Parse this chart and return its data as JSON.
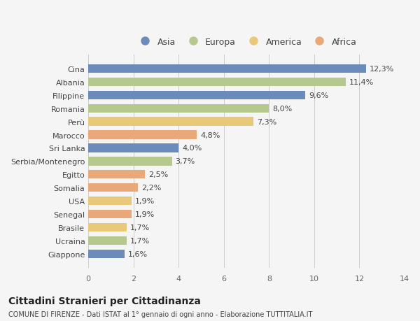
{
  "categories": [
    "Giappone",
    "Ucraina",
    "Brasile",
    "Senegal",
    "USA",
    "Somalia",
    "Egitto",
    "Serbia/Montenegro",
    "Sri Lanka",
    "Marocco",
    "Perù",
    "Romania",
    "Filippine",
    "Albania",
    "Cina"
  ],
  "values": [
    1.6,
    1.7,
    1.7,
    1.9,
    1.9,
    2.2,
    2.5,
    3.7,
    4.0,
    4.8,
    7.3,
    8.0,
    9.6,
    11.4,
    12.3
  ],
  "labels": [
    "1,6%",
    "1,7%",
    "1,7%",
    "1,9%",
    "1,9%",
    "2,2%",
    "2,5%",
    "3,7%",
    "4,0%",
    "4,8%",
    "7,3%",
    "8,0%",
    "9,6%",
    "11,4%",
    "12,3%"
  ],
  "colors": [
    "#6b8cba",
    "#b5c98e",
    "#e8c97a",
    "#e8a87a",
    "#e8c97a",
    "#e8a87a",
    "#e8a87a",
    "#b5c98e",
    "#6b8cba",
    "#e8a87a",
    "#e8c97a",
    "#b5c98e",
    "#6b8cba",
    "#b5c98e",
    "#6b8cba"
  ],
  "legend_labels": [
    "Asia",
    "Europa",
    "America",
    "Africa"
  ],
  "legend_colors": [
    "#6b8cba",
    "#b5c98e",
    "#e8c97a",
    "#e8a87a"
  ],
  "title1": "Cittadini Stranieri per Cittadinanza",
  "title2": "COMUNE DI FIRENZE - Dati ISTAT al 1° gennaio di ogni anno - Elaborazione TUTTITALIA.IT",
  "xlim": [
    0,
    14
  ],
  "xticks": [
    0,
    2,
    4,
    6,
    8,
    10,
    12,
    14
  ],
  "background_color": "#f5f5f5",
  "bar_height": 0.65
}
